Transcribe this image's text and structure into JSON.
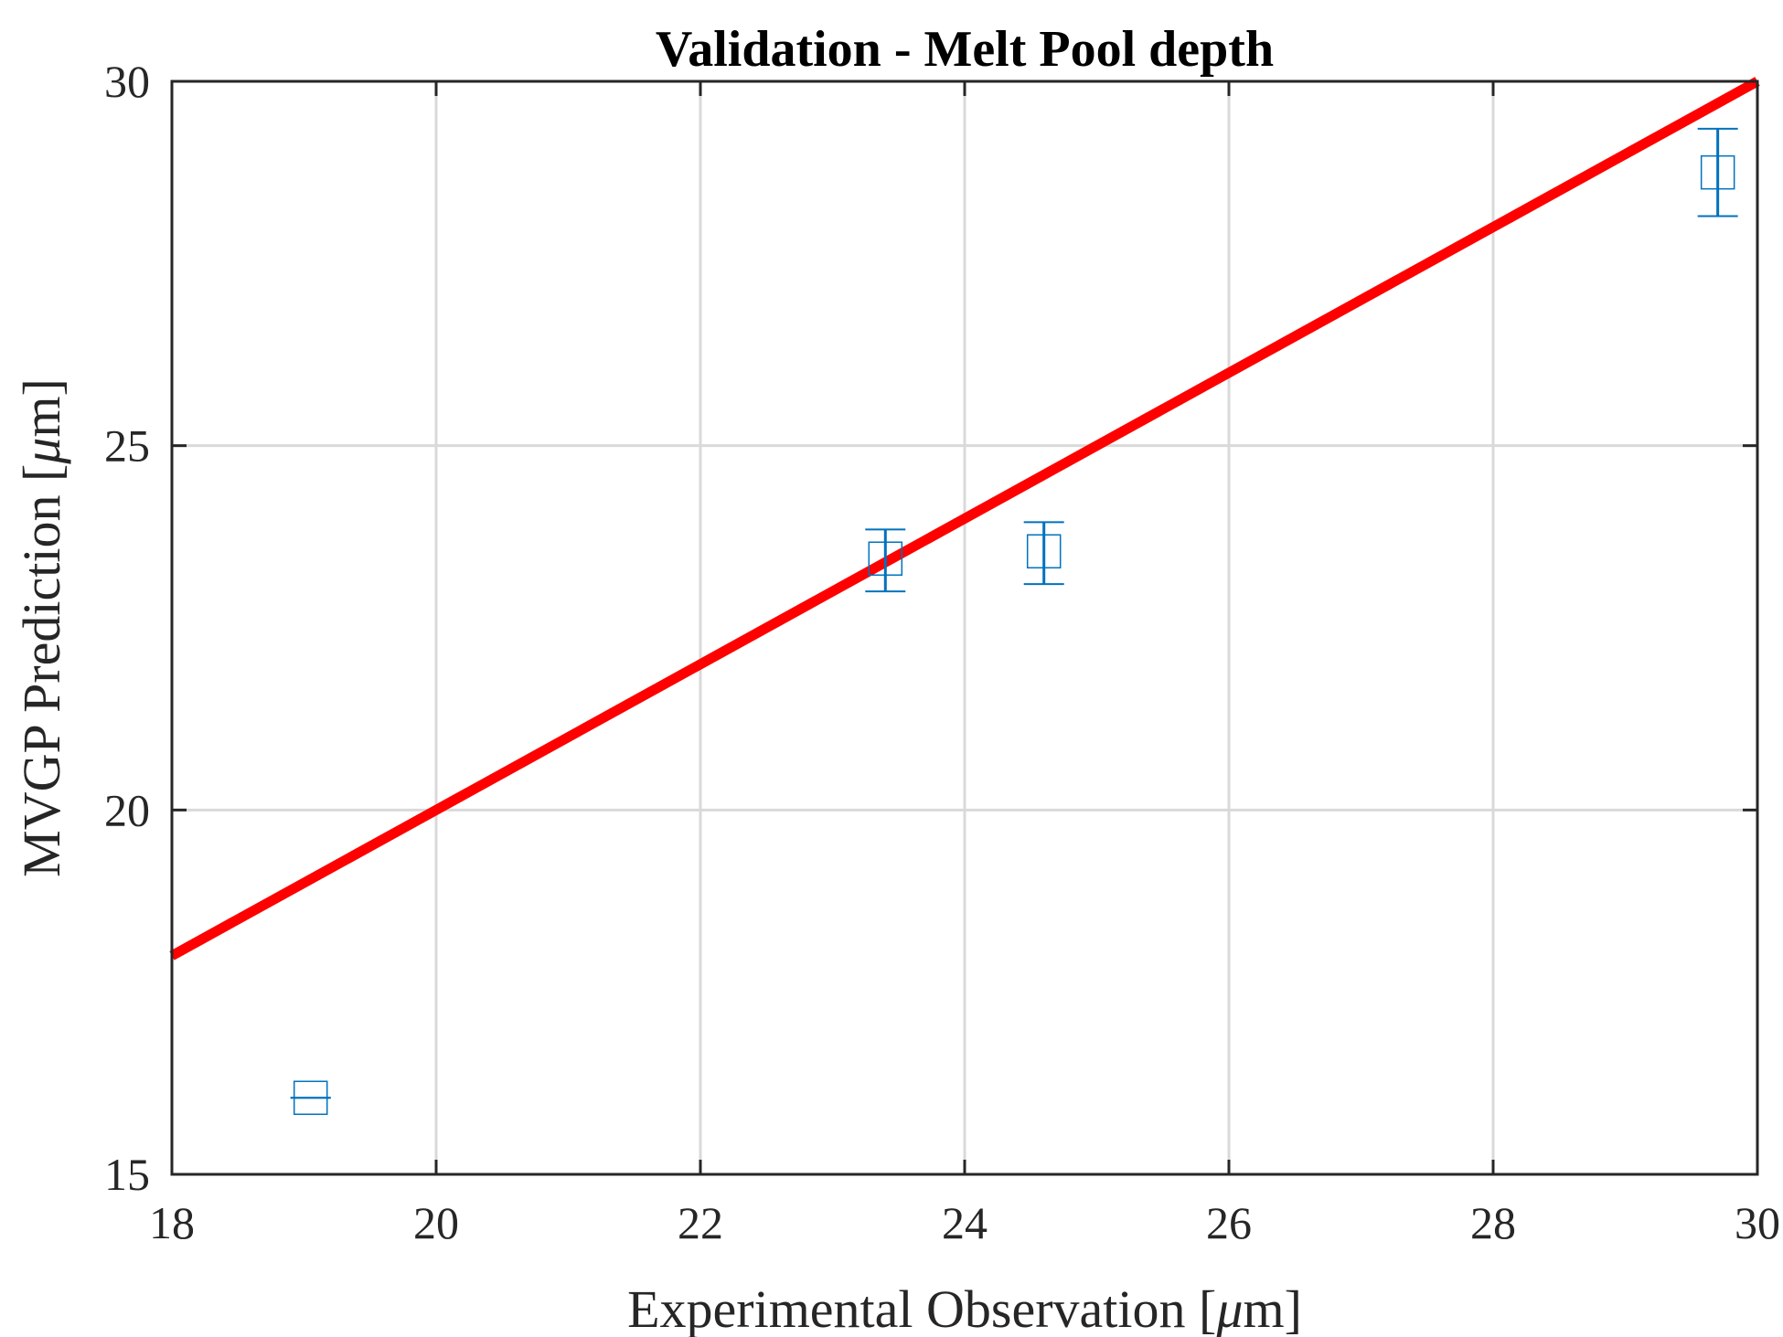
{
  "chart_data": {
    "type": "scatter",
    "title": "Validation - Melt Pool depth",
    "xlabel": "Experimental Observation [",
    "xlabel_unit": "μ",
    "xlabel_tail": "m]",
    "ylabel": "MVGP Prediction [",
    "ylabel_unit": "μ",
    "ylabel_tail": "m]",
    "xlim": [
      18,
      30
    ],
    "ylim": [
      15,
      30
    ],
    "x_ticks": [
      18,
      20,
      22,
      24,
      26,
      28,
      30
    ],
    "y_ticks": [
      15,
      20,
      25,
      30
    ],
    "x_tick_labels": [
      "18",
      "20",
      "22",
      "24",
      "26",
      "28",
      "30"
    ],
    "y_tick_labels": [
      "15",
      "20",
      "25",
      "30"
    ],
    "grid": true,
    "series": [
      {
        "type": "errorbar",
        "marker": "square",
        "color": "#0072BD",
        "points": [
          {
            "x": 19.05,
            "y": 16.05,
            "err_low": 16.05,
            "err_high": 16.05
          },
          {
            "x": 23.4,
            "y": 23.45,
            "err_low": 23.0,
            "err_high": 23.85
          },
          {
            "x": 24.6,
            "y": 23.55,
            "err_low": 23.1,
            "err_high": 23.95
          },
          {
            "x": 29.7,
            "y": 28.75,
            "err_low": 28.15,
            "err_high": 29.35
          }
        ]
      },
      {
        "type": "line",
        "color": "#FF0000",
        "x": [
          18,
          30
        ],
        "y": [
          18,
          30
        ]
      }
    ]
  }
}
